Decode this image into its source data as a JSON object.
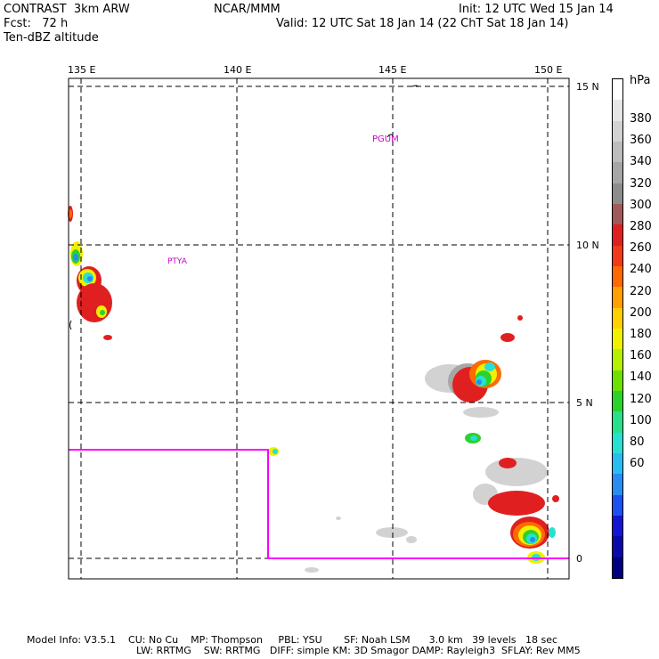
{
  "header": {
    "left_line1": "CONTRAST  3km ARW",
    "left_line2": "Fcst:   72 h",
    "left_line3": "Ten-dBZ altitude",
    "center": "NCAR/MMM",
    "right_line1": "Init: 12 UTC Wed 15 Jan 14",
    "right_line2": "Valid: 12 UTC Sat 18 Jan 14 (22 ChT Sat 18 Jan 14)"
  },
  "map": {
    "lon_labels": [
      "135 E",
      "140 E",
      "145 E",
      "150 E"
    ],
    "lat_labels": [
      "15 N",
      "10 N",
      "5 N",
      "0"
    ],
    "station_labels": [
      "PGUM",
      "PTYA"
    ],
    "colors": {
      "domain_box": "#ff00ff",
      "station_label": "#cc00cc",
      "grid": "#000000"
    }
  },
  "colorbar": {
    "unit": "hPa",
    "levels": [
      "380",
      "360",
      "340",
      "320",
      "300",
      "280",
      "260",
      "240",
      "220",
      "200",
      "180",
      "160",
      "140",
      "120",
      "100",
      "80",
      "60"
    ],
    "colors": [
      "#ffffff",
      "#e6e6e6",
      "#d2d2d2",
      "#bcbcbc",
      "#a6a6a6",
      "#8c8c8c",
      "#a05a5a",
      "#e02020",
      "#f03a1a",
      "#ff6a00",
      "#ffa000",
      "#ffd000",
      "#f0f000",
      "#b4f000",
      "#6ee000",
      "#2cd22c",
      "#28e08c",
      "#28e0d2",
      "#28bcf0",
      "#288cf0",
      "#1e50f0",
      "#1414d2",
      "#0a0aaa",
      "#000080"
    ]
  },
  "footer": {
    "line1": "Model Info: V3.5.1    CU: No Cu    MP: Thompson     PBL: YSU       SF: Noah LSM      3.0 km   39 levels   18 sec",
    "line2": "LW: RRTMG    SW: RRTMG   DIFF: simple KM: 3D Smagor DAMP: Rayleigh3  SFLAY: Rev MM5"
  }
}
